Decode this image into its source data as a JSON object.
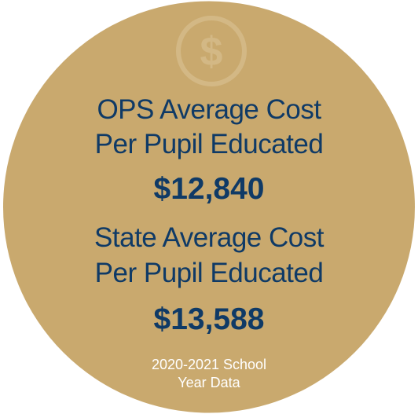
{
  "heading1": [
    "OPS Average Cost",
    "Per Pupil Educated"
  ],
  "amount1": "$12,840",
  "heading2": [
    "State Average Cost",
    "Per Pupil Educated"
  ],
  "amount2": "$13,588",
  "footnote": [
    "2020-2021 School",
    "Year Data"
  ]
}
